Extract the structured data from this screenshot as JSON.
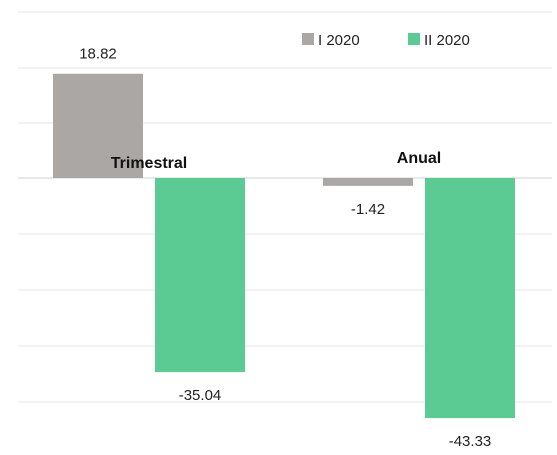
{
  "chart_data": {
    "type": "bar",
    "categories": [
      "Trimestral",
      "Anual"
    ],
    "series": [
      {
        "name": "I 2020",
        "values": [
          18.82,
          -1.42
        ],
        "color": "#aaa7a5"
      },
      {
        "name": "II 2020",
        "values": [
          -35.04,
          -43.33
        ],
        "color": "#5ccb93"
      }
    ],
    "data_labels": [
      [
        "18.82",
        "-1.42"
      ],
      [
        "-35.04",
        "-43.33"
      ]
    ],
    "ylim": [
      -45,
      25
    ],
    "grid": true,
    "legend": "top-right",
    "title": "",
    "xlabel": "",
    "ylabel": ""
  }
}
